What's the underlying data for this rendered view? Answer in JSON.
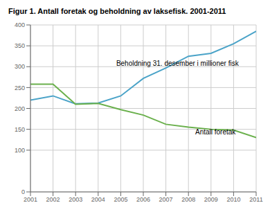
{
  "chart_data": {
    "type": "line",
    "title": "Figur 1. Antall foretak og beholdning av laksefisk. 2001-2011",
    "x": [
      2001,
      2002,
      2003,
      2004,
      2005,
      2006,
      2007,
      2008,
      2009,
      2010,
      2011
    ],
    "series": [
      {
        "color": "#4aa3c8",
        "values": [
          220,
          230,
          211,
          213,
          230,
          272,
          297,
          325,
          332,
          355,
          385
        ]
      },
      {
        "color": "#6ab04c",
        "values": [
          258,
          258,
          210,
          212,
          197,
          184,
          162,
          155,
          150,
          148,
          130
        ]
      }
    ],
    "annotations": [
      {
        "text": "Beholdning 31. desember i millioner fisk",
        "x": 2004.8,
        "y": 297
      },
      {
        "text": "Antall foretak",
        "x": 2008.3,
        "y": 132
      }
    ],
    "xlim": [
      2001,
      2011
    ],
    "xticks": [
      2001,
      2002,
      2003,
      2004,
      2005,
      2006,
      2007,
      2008,
      2009,
      2010,
      2011
    ],
    "ylim": [
      0,
      400
    ],
    "yticks": [
      0,
      100,
      150,
      200,
      250,
      300,
      350,
      400
    ],
    "grid": true
  }
}
